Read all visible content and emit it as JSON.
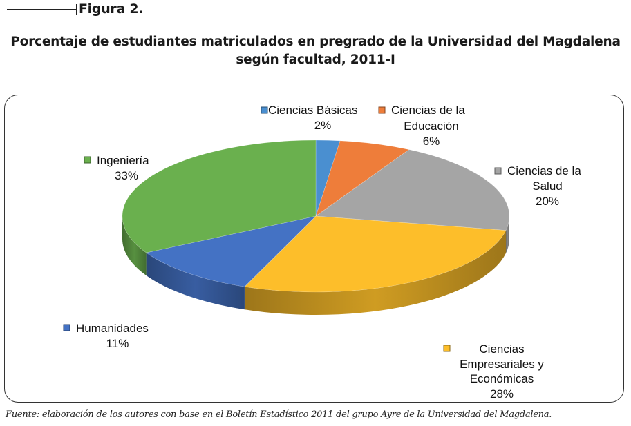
{
  "figure_label": "Figura 2.",
  "title_lines": [
    "Porcentaje de estudiantes matriculados en pregrado de la Universidad del Magdalena",
    "según facultad, 2011-I"
  ],
  "source": "Fuente: elaboración de los autores con base en el Boletín Estadístico 2011 del grupo Ayre de la Universidad del Magdalena.",
  "chart_data": {
    "type": "pie",
    "style": "3d",
    "slices": [
      {
        "label_lines": [
          "Ciencias Básicas"
        ],
        "value": 2,
        "value_label": "2%",
        "color": "#4A8FD0"
      },
      {
        "label_lines": [
          "Ciencias de la",
          "Educación"
        ],
        "value": 6,
        "value_label": "6%",
        "color": "#EE7D3A"
      },
      {
        "label_lines": [
          "Ciencias de la",
          "Salud"
        ],
        "value": 20,
        "value_label": "20%",
        "color": "#A5A5A5"
      },
      {
        "label_lines": [
          "Ciencias",
          "Empresariales y",
          "Económicas"
        ],
        "value": 28,
        "value_label": "28%",
        "color": "#FDBE2A"
      },
      {
        "label_lines": [
          "Humanidades"
        ],
        "value": 11,
        "value_label": "11%",
        "color": "#4472C4"
      },
      {
        "label_lines": [
          "Ingeniería"
        ],
        "value": 33,
        "value_label": "33%",
        "color": "#6AB04E"
      }
    ]
  }
}
